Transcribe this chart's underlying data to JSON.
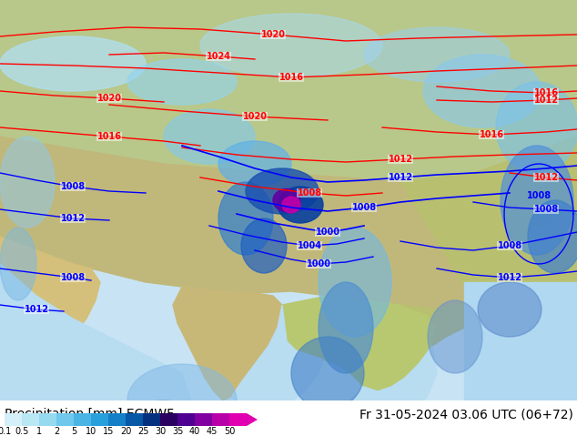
{
  "title_left": "Precipitation [mm] ECMWF",
  "title_right": "Fr 31-05-2024 03.06 UTC (06+72)",
  "colorbar_labels": [
    "0.1",
    "0.5",
    "1",
    "2",
    "5",
    "10",
    "15",
    "20",
    "25",
    "30",
    "35",
    "40",
    "45",
    "50"
  ],
  "colorbar_colors": [
    "#d4f0f8",
    "#b8e8f4",
    "#96daf0",
    "#70c8ec",
    "#4ab4e4",
    "#28a0dc",
    "#1480c8",
    "#0858a8",
    "#053080",
    "#2a0060",
    "#4e0090",
    "#8000a0",
    "#b800a8",
    "#e000b0"
  ],
  "legend_bg": "#ffffff",
  "map_colors": {
    "land_tan": "#c8b882",
    "land_green": "#a8c870",
    "water_light": "#c8e8f8",
    "water_medium": "#a0d0f0",
    "precip_light": "#b8e8ff",
    "precip_med": "#78c8f0",
    "precip_blue": "#4090d8",
    "precip_dark": "#1040a0",
    "precip_purple": "#600090"
  },
  "fig_width": 6.34,
  "fig_height": 4.9,
  "dpi": 100
}
